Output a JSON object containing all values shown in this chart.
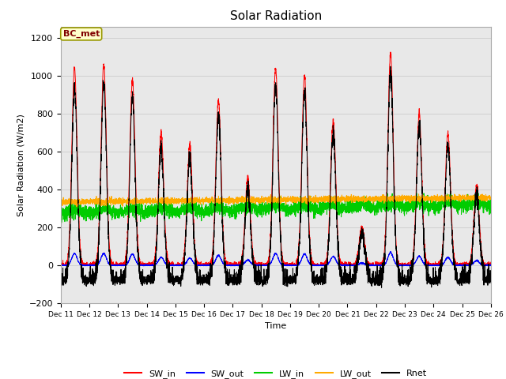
{
  "title": "Solar Radiation",
  "ylabel": "Solar Radiation (W/m2)",
  "xlabel": "Time",
  "ylim": [
    -200,
    1260
  ],
  "yticks": [
    -200,
    0,
    200,
    400,
    600,
    800,
    1000,
    1200
  ],
  "num_days": 15,
  "points_per_day": 288,
  "annotation_text": "BC_met",
  "annotation_color": "#800000",
  "annotation_bg": "#ffffcc",
  "annotation_border": "#999900",
  "series_colors": {
    "SW_in": "#ff0000",
    "SW_out": "#0000ff",
    "LW_in": "#00cc00",
    "LW_out": "#ffaa00",
    "Rnet": "#000000"
  },
  "grid_color": "#cccccc",
  "fig_bg_color": "#ffffff",
  "plot_bg_color": "#e8e8e8",
  "xtick_labels": [
    "Dec 11",
    "Dec 12",
    "Dec 13",
    "Dec 14",
    "Dec 15",
    "Dec 16",
    "Dec 17",
    "Dec 18",
    "Dec 19",
    "Dec 20",
    "Dec 21",
    "Dec 22",
    "Dec 23",
    "Dec 24",
    "Dec 25",
    "Dec 26"
  ],
  "SW_in_peaks": [
    1040,
    1060,
    975,
    700,
    630,
    870,
    460,
    1040,
    1000,
    760,
    200,
    1120,
    800,
    700,
    420
  ],
  "SW_in_peak_hours": [
    11.5,
    12.0,
    12.0,
    12.0,
    12.0,
    12.0,
    12.5,
    11.8,
    12.0,
    12.0,
    12.0,
    12.0,
    12.0,
    12.0,
    12.0
  ],
  "LW_in_base": 270,
  "LW_out_base": 335,
  "night_rnet": -80
}
